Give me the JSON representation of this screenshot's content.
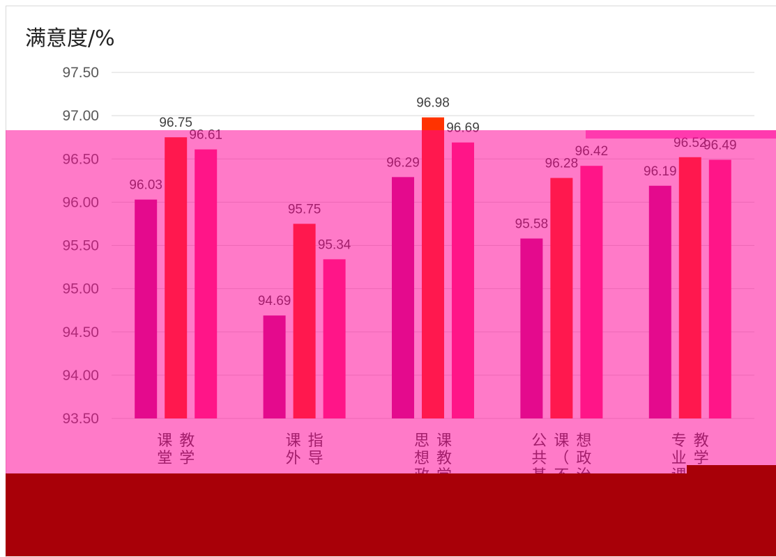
{
  "chart_data": {
    "type": "bar",
    "title": "满意度/%",
    "categories": [
      "课堂教学",
      "课外指导",
      "思想政治课教学",
      "公共基础课（不含思想政治课）",
      "专业课教学"
    ],
    "category_display": [
      [
        "课堂",
        "教学"
      ],
      [
        "课外",
        "指导"
      ],
      [
        "思想政治",
        "课教学"
      ],
      [
        "公共基础",
        "课（不含思",
        "想政治课）"
      ],
      [
        "专业课",
        "教学"
      ]
    ],
    "series": [
      {
        "values": [
          96.03,
          94.69,
          96.29,
          95.58,
          96.19
        ],
        "color": "#c71585"
      },
      {
        "values": [
          96.75,
          95.75,
          96.98,
          96.28,
          96.52
        ],
        "color": "#ff3300"
      },
      {
        "values": [
          96.61,
          95.34,
          96.69,
          96.42,
          96.49
        ],
        "color": "#ff2d7a"
      }
    ],
    "ylim": [
      93.5,
      97.5
    ],
    "yticks": [
      "97.50",
      "97.00",
      "96.50",
      "96.00",
      "95.50",
      "95.00",
      "94.50",
      "94.00",
      "93.50"
    ],
    "grid": true,
    "legend_position": "bottom"
  },
  "colors": {
    "overlay_pink": "#ff0096",
    "overlay_dark": "#a80008"
  }
}
